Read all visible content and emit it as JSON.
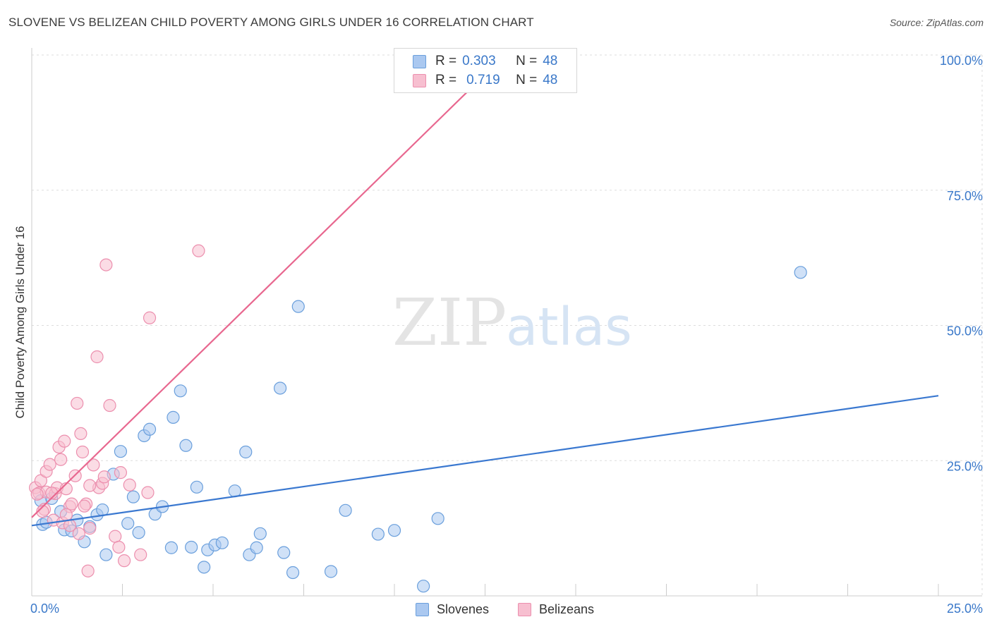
{
  "header": {
    "title": "SLOVENE VS BELIZEAN CHILD POVERTY AMONG GIRLS UNDER 16 CORRELATION CHART",
    "source": "Source: ZipAtlas.com"
  },
  "watermark": {
    "zip": "ZIP",
    "atlas": "atlas"
  },
  "legend": {
    "r_label": "R =",
    "n_label": "N =",
    "rows": [
      {
        "name": "Slovenes",
        "r": "0.303",
        "n": "48"
      },
      {
        "name": "Belizeans",
        "r": "0.719",
        "n": "48"
      }
    ]
  },
  "colors": {
    "slovenes_fill": "#aac8f0",
    "slovenes_stroke": "#6a9fdc",
    "slovenes_line": "#3a78d0",
    "belizeans_fill": "#f7bfd0",
    "belizeans_stroke": "#ec8fae",
    "belizeans_line": "#e8678f",
    "tick_text": "#3a78c9",
    "grid": "#dddddd"
  },
  "chart_data": {
    "type": "scatter",
    "title": "SLOVENE VS BELIZEAN CHILD POVERTY AMONG GIRLS UNDER 16 CORRELATION CHART",
    "xlabel": "",
    "ylabel": "Child Poverty Among Girls Under 16",
    "xlim": [
      0,
      25
    ],
    "ylim": [
      0,
      100
    ],
    "x_tick_labels": [
      "0.0%",
      "25.0%"
    ],
    "y_ticks": [
      {
        "value": 25,
        "label": "25.0%"
      },
      {
        "value": 50,
        "label": "50.0%"
      },
      {
        "value": 75,
        "label": "75.0%"
      },
      {
        "value": 100,
        "label": "100.0%"
      }
    ],
    "grid": true,
    "legend_position": "top-center",
    "series": [
      {
        "name": "Slovenes",
        "r": 0.303,
        "n": 48,
        "trend": {
          "x": [
            0,
            25
          ],
          "y": [
            13,
            37
          ]
        },
        "points": [
          [
            0.25,
            17.6
          ],
          [
            0.3,
            13.2
          ],
          [
            0.4,
            13.6
          ],
          [
            0.55,
            18.0
          ],
          [
            0.8,
            15.6
          ],
          [
            0.9,
            12.2
          ],
          [
            1.1,
            12.0
          ],
          [
            1.25,
            14.0
          ],
          [
            1.45,
            10.0
          ],
          [
            1.6,
            12.8
          ],
          [
            1.8,
            15.0
          ],
          [
            1.95,
            15.9
          ],
          [
            2.05,
            7.6
          ],
          [
            2.25,
            22.5
          ],
          [
            2.45,
            26.7
          ],
          [
            2.65,
            13.4
          ],
          [
            2.8,
            18.3
          ],
          [
            2.95,
            11.7
          ],
          [
            3.1,
            29.6
          ],
          [
            3.25,
            30.8
          ],
          [
            3.4,
            15.1
          ],
          [
            3.6,
            16.5
          ],
          [
            3.85,
            8.9
          ],
          [
            3.9,
            33.0
          ],
          [
            4.1,
            37.9
          ],
          [
            4.25,
            27.8
          ],
          [
            4.4,
            9.0
          ],
          [
            4.55,
            20.1
          ],
          [
            4.75,
            5.3
          ],
          [
            4.85,
            8.5
          ],
          [
            5.05,
            9.4
          ],
          [
            5.25,
            9.8
          ],
          [
            5.6,
            19.4
          ],
          [
            5.9,
            26.6
          ],
          [
            6.0,
            7.6
          ],
          [
            6.2,
            8.9
          ],
          [
            6.3,
            11.5
          ],
          [
            6.85,
            38.4
          ],
          [
            6.95,
            8.0
          ],
          [
            7.2,
            4.3
          ],
          [
            7.35,
            53.5
          ],
          [
            8.25,
            4.5
          ],
          [
            8.65,
            15.8
          ],
          [
            9.55,
            11.4
          ],
          [
            10.0,
            12.1
          ],
          [
            10.8,
            1.8
          ],
          [
            11.2,
            14.3
          ],
          [
            21.2,
            59.8
          ]
        ]
      },
      {
        "name": "Belizeans",
        "r": 0.719,
        "n": 48,
        "trend": {
          "x": [
            0,
            13.05
          ],
          "y": [
            14.5,
            100
          ]
        },
        "points": [
          [
            0.1,
            20.0
          ],
          [
            0.2,
            19.0
          ],
          [
            0.25,
            21.3
          ],
          [
            0.35,
            16.0
          ],
          [
            0.4,
            19.2
          ],
          [
            0.4,
            23.0
          ],
          [
            0.5,
            24.3
          ],
          [
            0.6,
            14.0
          ],
          [
            0.65,
            18.9
          ],
          [
            0.7,
            20.0
          ],
          [
            0.75,
            27.5
          ],
          [
            0.8,
            25.2
          ],
          [
            0.85,
            13.5
          ],
          [
            0.9,
            28.6
          ],
          [
            0.95,
            19.8
          ],
          [
            1.05,
            16.5
          ],
          [
            1.1,
            17.0
          ],
          [
            1.2,
            22.2
          ],
          [
            1.25,
            35.6
          ],
          [
            1.3,
            11.5
          ],
          [
            1.35,
            30.0
          ],
          [
            1.4,
            26.6
          ],
          [
            1.5,
            17.0
          ],
          [
            1.55,
            4.6
          ],
          [
            1.6,
            12.5
          ],
          [
            1.7,
            24.2
          ],
          [
            1.8,
            44.2
          ],
          [
            1.85,
            20.0
          ],
          [
            1.95,
            20.8
          ],
          [
            2.0,
            22.0
          ],
          [
            2.05,
            61.2
          ],
          [
            2.15,
            35.2
          ],
          [
            2.3,
            11.0
          ],
          [
            2.4,
            9.0
          ],
          [
            2.45,
            22.8
          ],
          [
            2.55,
            6.5
          ],
          [
            2.7,
            20.5
          ],
          [
            3.0,
            7.6
          ],
          [
            3.2,
            19.1
          ],
          [
            3.25,
            51.4
          ],
          [
            4.6,
            63.8
          ],
          [
            0.15,
            18.8
          ],
          [
            0.3,
            15.6
          ],
          [
            1.05,
            13.0
          ],
          [
            1.6,
            20.4
          ],
          [
            0.55,
            19.0
          ],
          [
            0.95,
            15.0
          ],
          [
            1.45,
            16.6
          ]
        ]
      }
    ]
  }
}
